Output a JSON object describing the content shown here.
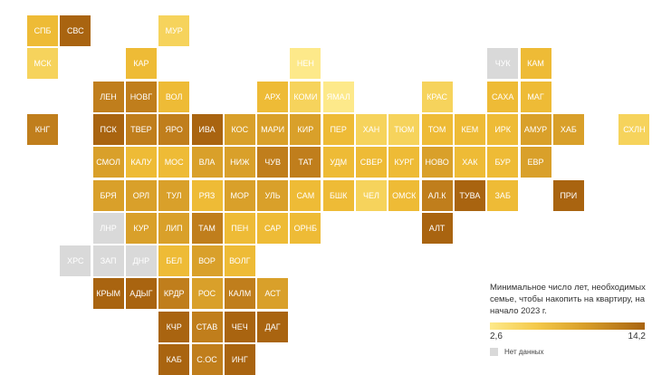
{
  "legend": {
    "title": "Минимальное число лет, необходимых семье, чтобы накопить на квартиру, на начало 2023 г.",
    "min_label": "2,6",
    "max_label": "14,2",
    "nodata_label": "Нет данных"
  },
  "colors": {
    "nodata": "#d9d9d9",
    "scale": [
      "#fde98a",
      "#f6d35c",
      "#eebb36",
      "#d9a02a",
      "#c07e1c",
      "#a96410"
    ]
  },
  "regions": [
    {
      "label": "СПБ",
      "col": 0,
      "row": 0,
      "level": 2
    },
    {
      "label": "СВС",
      "col": 1,
      "row": 0,
      "level": 5
    },
    {
      "label": "МУР",
      "col": 4,
      "row": 0,
      "level": 1
    },
    {
      "label": "МСК",
      "col": 0,
      "row": 1,
      "level": 1
    },
    {
      "label": "КАР",
      "col": 3,
      "row": 1,
      "level": 2
    },
    {
      "label": "НЕН",
      "col": 8,
      "row": 1,
      "level": 0
    },
    {
      "label": "ЧУК",
      "col": 14,
      "row": 1,
      "level": null
    },
    {
      "label": "КАМ",
      "col": 15,
      "row": 1,
      "level": 2
    },
    {
      "label": "ЛЕН",
      "col": 2,
      "row": 2,
      "level": 4
    },
    {
      "label": "НОВГ",
      "col": 3,
      "row": 2,
      "level": 4
    },
    {
      "label": "ВОЛ",
      "col": 4,
      "row": 2,
      "level": 2
    },
    {
      "label": "АРХ",
      "col": 7,
      "row": 2,
      "level": 2
    },
    {
      "label": "КОМИ",
      "col": 8,
      "row": 2,
      "level": 1
    },
    {
      "label": "ЯМАЛ",
      "col": 9,
      "row": 2,
      "level": 0
    },
    {
      "label": "КРАС",
      "col": 12,
      "row": 2,
      "level": 1
    },
    {
      "label": "САХА",
      "col": 14,
      "row": 2,
      "level": 2
    },
    {
      "label": "МАГ",
      "col": 15,
      "row": 2,
      "level": 2
    },
    {
      "label": "КНГ",
      "col": 0,
      "row": 3,
      "level": 4
    },
    {
      "label": "ПСК",
      "col": 2,
      "row": 3,
      "level": 5
    },
    {
      "label": "ТВЕР",
      "col": 3,
      "row": 3,
      "level": 4
    },
    {
      "label": "ЯРО",
      "col": 4,
      "row": 3,
      "level": 4
    },
    {
      "label": "ИВА",
      "col": 5,
      "row": 3,
      "level": 5
    },
    {
      "label": "КОС",
      "col": 6,
      "row": 3,
      "level": 3
    },
    {
      "label": "МАРИ",
      "col": 7,
      "row": 3,
      "level": 3
    },
    {
      "label": "КИР",
      "col": 8,
      "row": 3,
      "level": 3
    },
    {
      "label": "ПЕР",
      "col": 9,
      "row": 3,
      "level": 2
    },
    {
      "label": "ХАН",
      "col": 10,
      "row": 3,
      "level": 1
    },
    {
      "label": "ТЮМ",
      "col": 11,
      "row": 3,
      "level": 1
    },
    {
      "label": "ТОМ",
      "col": 12,
      "row": 3,
      "level": 2
    },
    {
      "label": "КЕМ",
      "col": 13,
      "row": 3,
      "level": 2
    },
    {
      "label": "ИРК",
      "col": 14,
      "row": 3,
      "level": 2
    },
    {
      "label": "АМУР",
      "col": 15,
      "row": 3,
      "level": 3
    },
    {
      "label": "ХАБ",
      "col": 16,
      "row": 3,
      "level": 3
    },
    {
      "label": "СХЛН",
      "col": 18,
      "row": 3,
      "level": 1
    },
    {
      "label": "СМОЛ",
      "col": 2,
      "row": 4,
      "level": 3
    },
    {
      "label": "КАЛУ",
      "col": 3,
      "row": 4,
      "level": 2
    },
    {
      "label": "МОС",
      "col": 4,
      "row": 4,
      "level": 2
    },
    {
      "label": "ВЛА",
      "col": 5,
      "row": 4,
      "level": 3
    },
    {
      "label": "НИЖ",
      "col": 6,
      "row": 4,
      "level": 3
    },
    {
      "label": "ЧУВ",
      "col": 7,
      "row": 4,
      "level": 4
    },
    {
      "label": "ТАТ",
      "col": 8,
      "row": 4,
      "level": 4
    },
    {
      "label": "УДМ",
      "col": 9,
      "row": 4,
      "level": 2
    },
    {
      "label": "СВЕР",
      "col": 10,
      "row": 4,
      "level": 2
    },
    {
      "label": "КУРГ",
      "col": 11,
      "row": 4,
      "level": 2
    },
    {
      "label": "НОВО",
      "col": 12,
      "row": 4,
      "level": 3
    },
    {
      "label": "ХАК",
      "col": 13,
      "row": 4,
      "level": 2
    },
    {
      "label": "БУР",
      "col": 14,
      "row": 4,
      "level": 2
    },
    {
      "label": "ЕВР",
      "col": 15,
      "row": 4,
      "level": 3
    },
    {
      "label": "БРЯ",
      "col": 2,
      "row": 5,
      "level": 3
    },
    {
      "label": "ОРЛ",
      "col": 3,
      "row": 5,
      "level": 3
    },
    {
      "label": "ТУЛ",
      "col": 4,
      "row": 5,
      "level": 3
    },
    {
      "label": "РЯЗ",
      "col": 5,
      "row": 5,
      "level": 2
    },
    {
      "label": "МОР",
      "col": 6,
      "row": 5,
      "level": 3
    },
    {
      "label": "УЛЬ",
      "col": 7,
      "row": 5,
      "level": 3
    },
    {
      "label": "САМ",
      "col": 8,
      "row": 5,
      "level": 2
    },
    {
      "label": "БШК",
      "col": 9,
      "row": 5,
      "level": 2
    },
    {
      "label": "ЧЕЛ",
      "col": 10,
      "row": 5,
      "level": 1
    },
    {
      "label": "ОМСК",
      "col": 11,
      "row": 5,
      "level": 2
    },
    {
      "label": "АЛ.К",
      "col": 12,
      "row": 5,
      "level": 4
    },
    {
      "label": "ТУВА",
      "col": 13,
      "row": 5,
      "level": 5
    },
    {
      "label": "ЗАБ",
      "col": 14,
      "row": 5,
      "level": 2
    },
    {
      "label": "ПРИ",
      "col": 16,
      "row": 5,
      "level": 5
    },
    {
      "label": "ЛНР",
      "col": 2,
      "row": 6,
      "level": null
    },
    {
      "label": "КУР",
      "col": 3,
      "row": 6,
      "level": 3
    },
    {
      "label": "ЛИП",
      "col": 4,
      "row": 6,
      "level": 3
    },
    {
      "label": "ТАМ",
      "col": 5,
      "row": 6,
      "level": 4
    },
    {
      "label": "ПЕН",
      "col": 6,
      "row": 6,
      "level": 2
    },
    {
      "label": "САР",
      "col": 7,
      "row": 6,
      "level": 2
    },
    {
      "label": "ОРНБ",
      "col": 8,
      "row": 6,
      "level": 2
    },
    {
      "label": "АЛТ",
      "col": 12,
      "row": 6,
      "level": 5
    },
    {
      "label": "ХРС",
      "col": 1,
      "row": 7,
      "level": null
    },
    {
      "label": "ЗАП",
      "col": 2,
      "row": 7,
      "level": null
    },
    {
      "label": "ДНР",
      "col": 3,
      "row": 7,
      "level": null
    },
    {
      "label": "БЕЛ",
      "col": 4,
      "row": 7,
      "level": 2
    },
    {
      "label": "ВОР",
      "col": 5,
      "row": 7,
      "level": 3
    },
    {
      "label": "ВОЛГ",
      "col": 6,
      "row": 7,
      "level": 2
    },
    {
      "label": "КРЫМ",
      "col": 2,
      "row": 8,
      "level": 5
    },
    {
      "label": "АДЫГ",
      "col": 3,
      "row": 8,
      "level": 5
    },
    {
      "label": "КРДР",
      "col": 4,
      "row": 8,
      "level": 4
    },
    {
      "label": "РОС",
      "col": 5,
      "row": 8,
      "level": 3
    },
    {
      "label": "КАЛМ",
      "col": 6,
      "row": 8,
      "level": 4
    },
    {
      "label": "АСТ",
      "col": 7,
      "row": 8,
      "level": 3
    },
    {
      "label": "КЧР",
      "col": 4,
      "row": 9,
      "level": 5
    },
    {
      "label": "СТАВ",
      "col": 5,
      "row": 9,
      "level": 4
    },
    {
      "label": "ЧЕЧ",
      "col": 6,
      "row": 9,
      "level": 5
    },
    {
      "label": "ДАГ",
      "col": 7,
      "row": 9,
      "level": 5
    },
    {
      "label": "КАБ",
      "col": 4,
      "row": 10,
      "level": 5
    },
    {
      "label": "С.ОС",
      "col": 5,
      "row": 10,
      "level": 4
    },
    {
      "label": "ИНГ",
      "col": 6,
      "row": 10,
      "level": 5
    }
  ]
}
